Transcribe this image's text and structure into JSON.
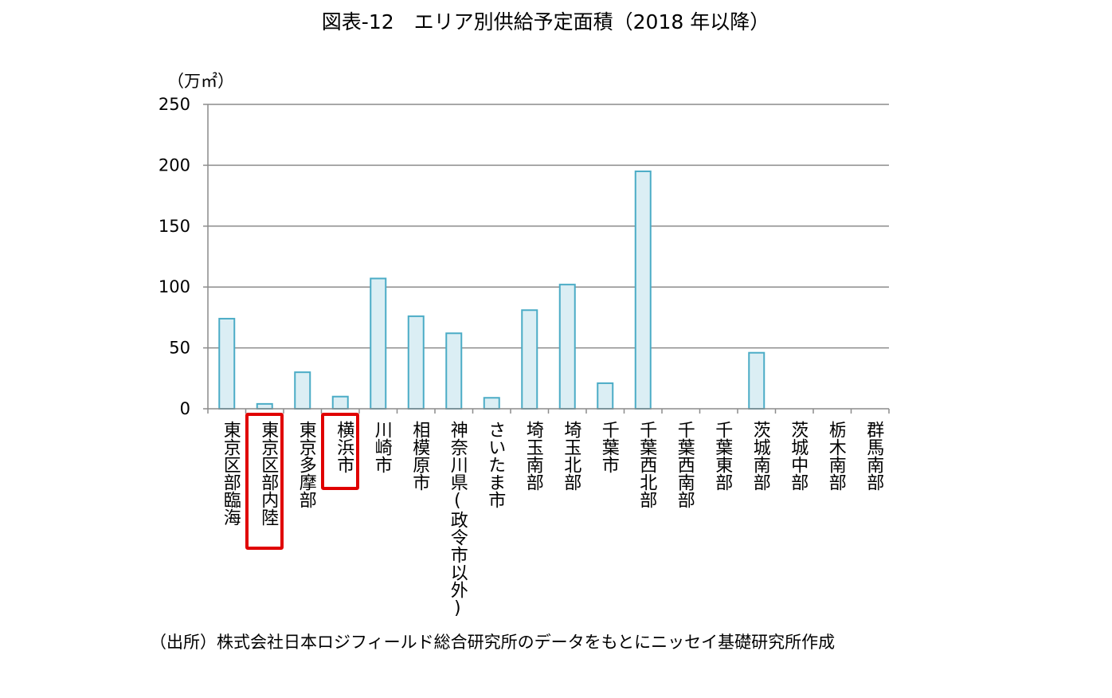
{
  "title": "図表-12　エリア別供給予定面積（2018 年以降）",
  "unit_label": "（万㎡）",
  "source": "（出所）株式会社日本ロジフィールド総合研究所のデータをもとにニッセイ基礎研究所作成",
  "colors": {
    "bar_fill": "#dbeef4",
    "bar_stroke": "#4bacc6",
    "gridline": "#8c8c8c",
    "axis": "#8c8c8c",
    "highlight": "#e00000"
  },
  "chart_data": {
    "type": "bar",
    "title": "図表-12　エリア別供給予定面積（2018 年以降）",
    "xlabel": "",
    "ylabel": "（万㎡）",
    "ylim": [
      0,
      250
    ],
    "yticks": [
      0,
      50,
      100,
      150,
      200,
      250
    ],
    "grid": true,
    "legend": "none",
    "categories": [
      "東京区部臨海",
      "東京区部内陸",
      "東京多摩部",
      "横浜市",
      "川崎市",
      "相模原市",
      "神奈川県(政令市以外)",
      "さいたま市",
      "埼玉南部",
      "埼玉北部",
      "千葉市",
      "千葉西北部",
      "千葉西南部",
      "千葉東部",
      "茨城南部",
      "茨城中部",
      "栃木南部",
      "群馬南部"
    ],
    "values": [
      74,
      4,
      30,
      10,
      107,
      76,
      62,
      9,
      81,
      102,
      21,
      195,
      0,
      0,
      46,
      0,
      0,
      0
    ],
    "highlighted": [
      "東京区部内陸",
      "横浜市"
    ]
  }
}
